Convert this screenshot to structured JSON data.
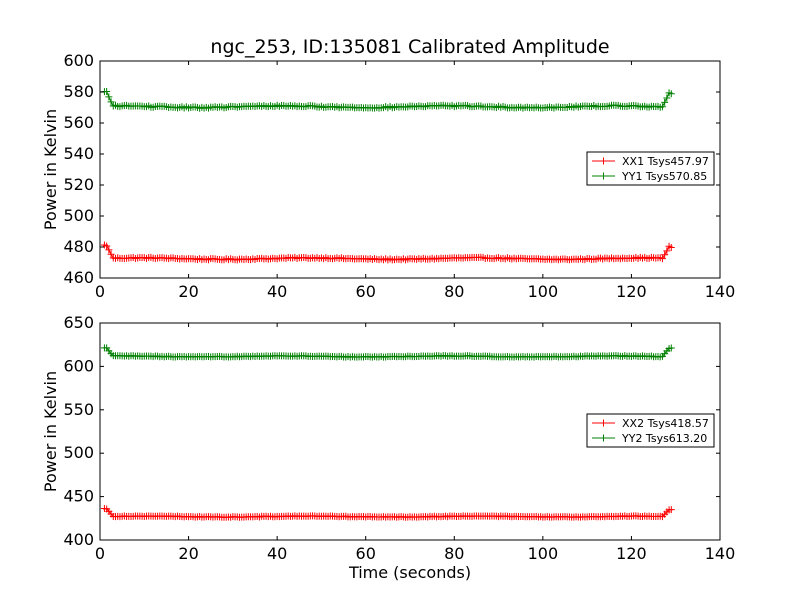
{
  "chart_data": {
    "title": "ngc_253, ID:135081 Calibrated Amplitude",
    "xlabel": "Time (seconds)",
    "panels": [
      {
        "type": "line",
        "ylabel": "Power in Kelvin",
        "xlim": [
          0,
          140
        ],
        "ylim": [
          460,
          600
        ],
        "xticks": [
          0,
          20,
          40,
          60,
          80,
          100,
          120,
          140
        ],
        "yticks": [
          460,
          480,
          500,
          520,
          540,
          560,
          580,
          600
        ],
        "legend_position": "center-right",
        "series": [
          {
            "name": "XX1 Tsys457.97",
            "color": "#ff0000",
            "x_range": [
              1,
              129
            ],
            "plateau": 472.5,
            "start_level": 481,
            "end_level": 480,
            "wiggle": 0.8
          },
          {
            "name": "YY1 Tsys570.85",
            "color": "#008000",
            "x_range": [
              1,
              129
            ],
            "plateau": 570.5,
            "start_level": 580,
            "end_level": 579,
            "wiggle": 0.9
          }
        ]
      },
      {
        "type": "line",
        "ylabel": "Power in Kelvin",
        "xlim": [
          0,
          140
        ],
        "ylim": [
          400,
          650
        ],
        "xticks": [
          0,
          20,
          40,
          60,
          80,
          100,
          120,
          140
        ],
        "yticks": [
          400,
          450,
          500,
          550,
          600,
          650
        ],
        "legend_position": "center-right",
        "series": [
          {
            "name": "XX2 Tsys418.57",
            "color": "#ff0000",
            "x_range": [
              1,
              129
            ],
            "plateau": 427,
            "start_level": 436,
            "end_level": 435,
            "wiggle": 0.8
          },
          {
            "name": "YY2 Tsys613.20",
            "color": "#008000",
            "x_range": [
              1,
              129
            ],
            "plateau": 611.5,
            "start_level": 621,
            "end_level": 621,
            "wiggle": 0.9
          }
        ]
      }
    ]
  }
}
